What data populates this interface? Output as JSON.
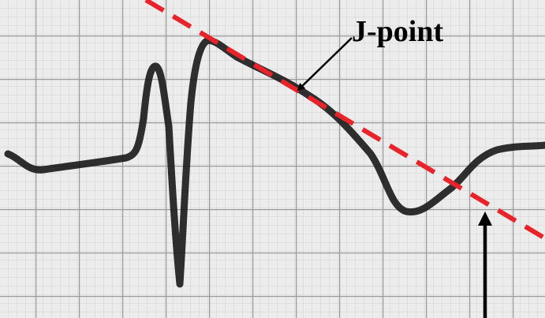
{
  "annotation": {
    "label": "J-point"
  }
}
